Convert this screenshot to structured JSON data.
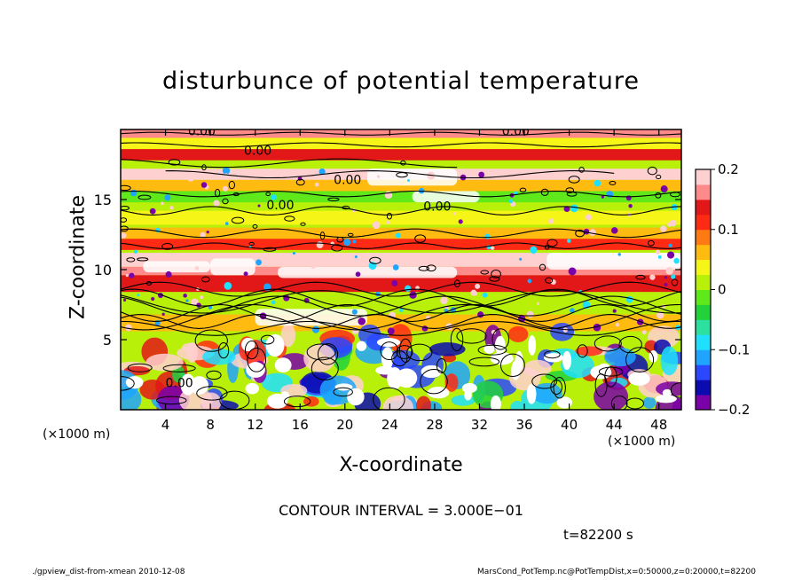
{
  "chart_data": {
    "type": "heatmap",
    "title": "disturbunce of potential temperature",
    "xlabel": "X-coordinate",
    "ylabel": "Z-coordinate",
    "x_unit_label": "(×1000 m)",
    "y_unit_label": "(×1000 m)",
    "xlim": [
      0,
      50
    ],
    "ylim": [
      0,
      20
    ],
    "x_ticks": [
      4,
      8,
      12,
      16,
      20,
      24,
      28,
      32,
      36,
      40,
      44,
      48
    ],
    "y_ticks": [
      5,
      10,
      15
    ],
    "colorbar": {
      "range": [
        -0.2,
        0.2
      ],
      "tick_values": [
        0.2,
        0.1,
        0,
        -0.1,
        -0.2
      ],
      "tick_labels": [
        "0.2",
        "0.1",
        "0",
        "−0.1",
        "−0.2"
      ],
      "colors": [
        "#7a00a8",
        "#0b0bb0",
        "#2c48ff",
        "#1fa5ff",
        "#1fe0ff",
        "#2ce0a0",
        "#22d23a",
        "#5fe81a",
        "#b8f00a",
        "#f5f518",
        "#ffbb10",
        "#ff7a12",
        "#ff2a14",
        "#e21818",
        "#ff8a8a",
        "#ffd0d0"
      ]
    },
    "contour_labels": [
      "0.00",
      "0.00",
      "0.00",
      "0.00",
      "0.00",
      "0.00",
      "0.00"
    ],
    "contour_interval_text": "CONTOUR INTERVAL = 3.000E−01",
    "time_text": "t=82200 s"
  },
  "footer": {
    "left": "./gpview_dist-from-xmean  2010-12-08",
    "right": "MarsCond_PotTemp.nc@PotTempDist,x=0:50000,z=0:20000,t=82200"
  }
}
